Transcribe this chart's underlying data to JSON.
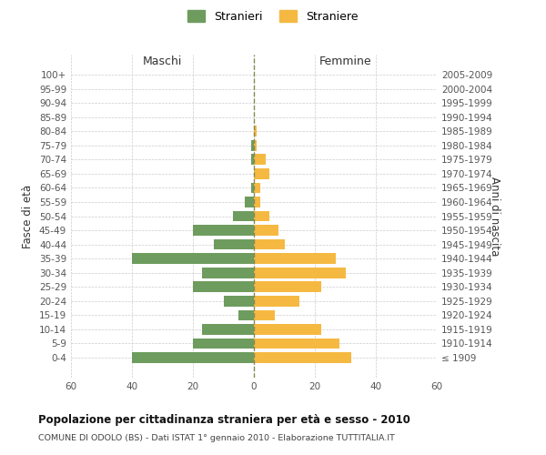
{
  "age_groups": [
    "100+",
    "95-99",
    "90-94",
    "85-89",
    "80-84",
    "75-79",
    "70-74",
    "65-69",
    "60-64",
    "55-59",
    "50-54",
    "45-49",
    "40-44",
    "35-39",
    "30-34",
    "25-29",
    "20-24",
    "15-19",
    "10-14",
    "5-9",
    "0-4"
  ],
  "birth_years": [
    "≤ 1909",
    "1910-1914",
    "1915-1919",
    "1920-1924",
    "1925-1929",
    "1930-1934",
    "1935-1939",
    "1940-1944",
    "1945-1949",
    "1950-1954",
    "1955-1959",
    "1960-1964",
    "1965-1969",
    "1970-1974",
    "1975-1979",
    "1980-1984",
    "1985-1989",
    "1990-1994",
    "1995-1999",
    "2000-2004",
    "2005-2009"
  ],
  "males": [
    0,
    0,
    0,
    0,
    0,
    1,
    1,
    0,
    1,
    3,
    7,
    20,
    13,
    40,
    17,
    20,
    10,
    5,
    17,
    20,
    40
  ],
  "females": [
    0,
    0,
    0,
    0,
    1,
    1,
    4,
    5,
    2,
    2,
    5,
    8,
    10,
    27,
    30,
    22,
    15,
    7,
    22,
    28,
    32
  ],
  "male_color": "#6e9c5e",
  "female_color": "#f5b942",
  "title": "Popolazione per cittadinanza straniera per età e sesso - 2010",
  "subtitle": "COMUNE DI ODOLO (BS) - Dati ISTAT 1° gennaio 2010 - Elaborazione TUTTITALIA.IT",
  "xlabel_left": "Maschi",
  "xlabel_right": "Femmine",
  "ylabel_left": "Fasce di età",
  "ylabel_right": "Anni di nascita",
  "legend_male": "Stranieri",
  "legend_female": "Straniere",
  "xlim": 60,
  "background_color": "#ffffff",
  "grid_color": "#cccccc"
}
